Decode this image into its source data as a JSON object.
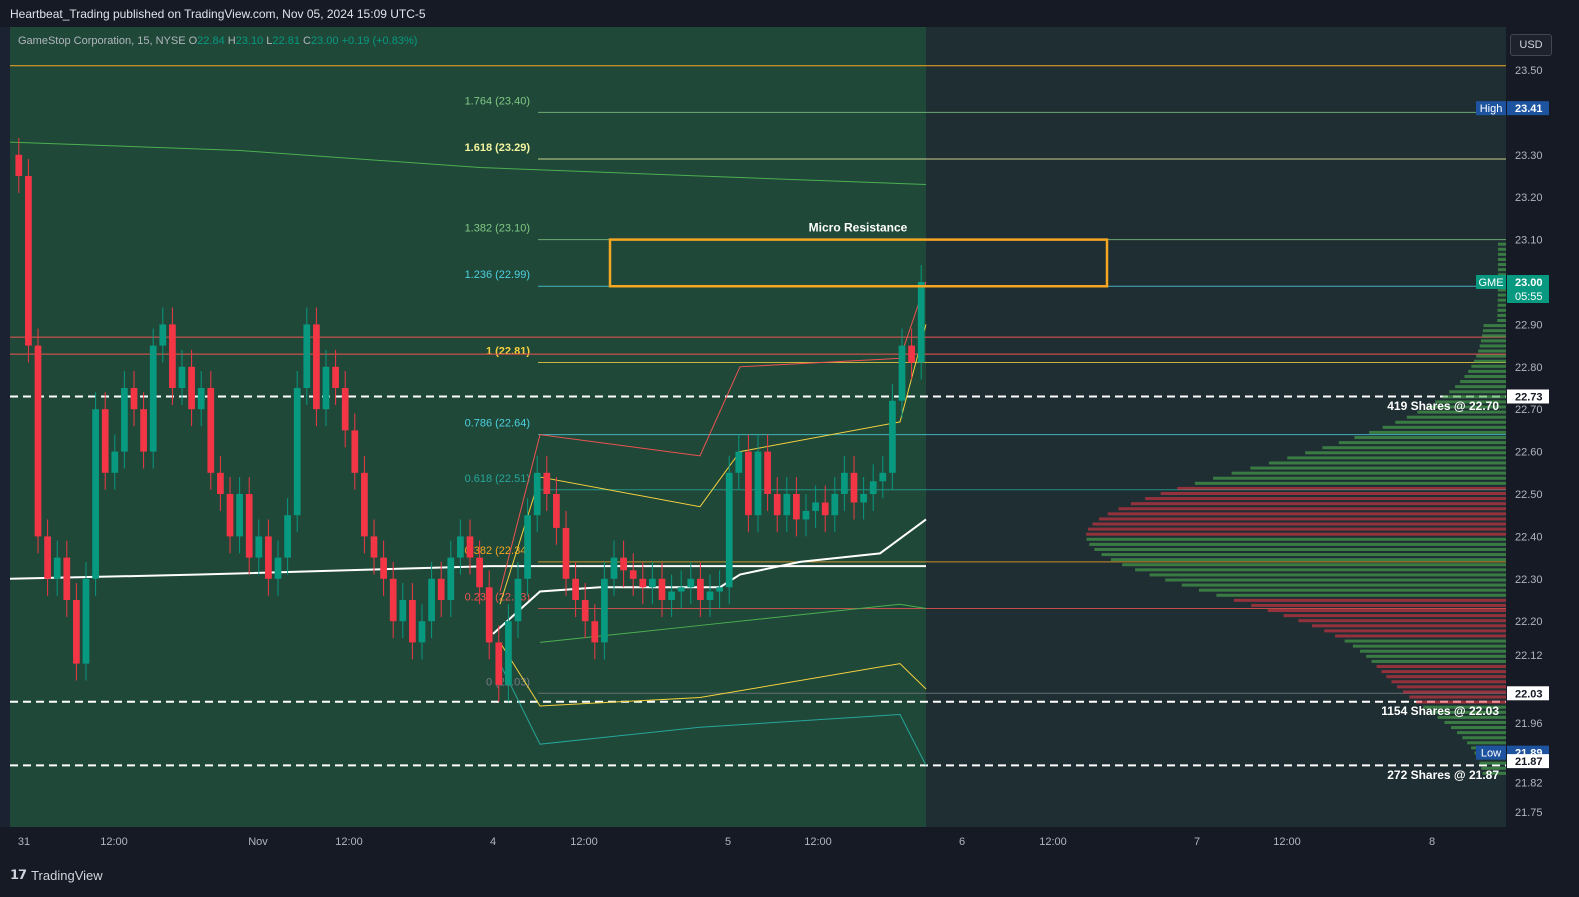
{
  "publisher": "Heartbeat_Trading published on TradingView.com, Nov 05, 2024 15:09 UTC-5",
  "legend": {
    "symbol": "GameStop Corporation, 15, NYSE",
    "o_label": "O",
    "o": "22.84",
    "h_label": "H",
    "h": "23.10",
    "l_label": "L",
    "l": "22.81",
    "c_label": "C",
    "c": "23.00",
    "change": "+0.19 (+0.83%)"
  },
  "currency": "USD",
  "brand": "TradingView",
  "chart_data": {
    "type": "candlestick",
    "ylim": [
      21.75,
      23.57
    ],
    "price_ticks": [
      "23.50",
      "23.41",
      "23.30",
      "23.20",
      "23.10",
      "23.00",
      "22.90",
      "22.80",
      "22.70",
      "22.60",
      "22.50",
      "22.40",
      "22.30",
      "22.20",
      "22.12",
      "22.03",
      "21.96",
      "21.89",
      "21.87",
      "21.82",
      "21.75"
    ],
    "time_ticks": [
      "31",
      "12:00",
      "Nov",
      "12:00",
      "4",
      "12:00",
      "5",
      "12:00",
      "6",
      "12:00",
      "7",
      "12:00",
      "8"
    ],
    "fib_levels": [
      {
        "label": "1.764 (23.40)",
        "value": 23.4,
        "color": "#81c784"
      },
      {
        "label": "1.618 (23.29)",
        "value": 23.29,
        "color": "#f5f5a0"
      },
      {
        "label": "1.382 (23.10)",
        "value": 23.1,
        "color": "#81c784"
      },
      {
        "label": "1.236 (22.99)",
        "value": 22.99,
        "color": "#4dd0e1"
      },
      {
        "label": "1 (22.81)",
        "value": 22.81,
        "color": "#f5d13f"
      },
      {
        "label": "0.786 (22.64)",
        "value": 22.64,
        "color": "#4dd0e1"
      },
      {
        "label": "0.618 (22.51)",
        "value": 22.51,
        "color": "#26a69a"
      },
      {
        "label": "0.382 (22.34)",
        "value": 22.34,
        "color": "#f5a623"
      },
      {
        "label": "0.236 (22.23)",
        "value": 22.23,
        "color": "#ef5350"
      },
      {
        "label": "0 (22.03)",
        "value": 22.03,
        "color": "#787b86"
      }
    ],
    "horizontal_lines": [
      {
        "value": 23.51,
        "color": "#f5a623",
        "style": "solid"
      },
      {
        "value": 22.87,
        "color": "#ef5350",
        "style": "solid"
      },
      {
        "value": 22.83,
        "color": "#ef5350",
        "style": "solid"
      },
      {
        "value": 22.73,
        "color": "#ffffff",
        "style": "dashed"
      },
      {
        "value": 22.01,
        "color": "#ffffff",
        "style": "dashed"
      },
      {
        "value": 21.86,
        "color": "#ffffff",
        "style": "dashed"
      }
    ],
    "zone": {
      "label": "Micro Resistance",
      "top": 23.1,
      "bottom": 22.99,
      "color": "#f5a623"
    },
    "volume_annotations": [
      {
        "label": "419 Shares @ 22.70",
        "value": 22.71
      },
      {
        "label": "1154 Shares @ 22.03",
        "value": 21.99
      },
      {
        "label": "272 Shares @ 21.87",
        "value": 21.84
      }
    ],
    "price_badges": [
      {
        "label": "High",
        "price": "23.41",
        "value": 23.41,
        "bg": "#1e53a0"
      },
      {
        "label": "GME",
        "price": "23.00",
        "sub": "05:55",
        "value": 23.0,
        "bg": "#089981"
      },
      {
        "label": "",
        "price": "22.73",
        "value": 22.73,
        "bg": "#ffffff"
      },
      {
        "label": "",
        "price": "22.03",
        "value": 22.03,
        "bg": "#ffffff"
      },
      {
        "label": "Low",
        "price": "21.89",
        "value": 21.89,
        "bg": "#1e53a0"
      },
      {
        "label": "",
        "price": "21.87",
        "value": 21.87,
        "bg": "#ffffff"
      }
    ],
    "candles_close": [
      23.25,
      22.85,
      22.4,
      22.3,
      22.35,
      22.25,
      22.1,
      22.3,
      22.7,
      22.55,
      22.6,
      22.75,
      22.7,
      22.6,
      22.85,
      22.9,
      22.75,
      22.8,
      22.7,
      22.75,
      22.55,
      22.5,
      22.4,
      22.5,
      22.35,
      22.4,
      22.3,
      22.35,
      22.45,
      22.75,
      22.9,
      22.7,
      22.8,
      22.75,
      22.65,
      22.55,
      22.4,
      22.35,
      22.3,
      22.2,
      22.25,
      22.15,
      22.2,
      22.3,
      22.25,
      22.35,
      22.4,
      22.35,
      22.28,
      22.15,
      22.05,
      22.2,
      22.3,
      22.45,
      22.55,
      22.5,
      22.42,
      22.3,
      22.25,
      22.2,
      22.15,
      22.3,
      22.35,
      22.32,
      22.3,
      22.28,
      22.3,
      22.25,
      22.27,
      22.28,
      22.3,
      22.25,
      22.27,
      22.28,
      22.55,
      22.6,
      22.45,
      22.6,
      22.5,
      22.45,
      22.5,
      22.44,
      22.46,
      22.48,
      22.45,
      22.5,
      22.55,
      22.48,
      22.5,
      22.53,
      22.55,
      22.72,
      22.85,
      22.81,
      23.0
    ]
  }
}
